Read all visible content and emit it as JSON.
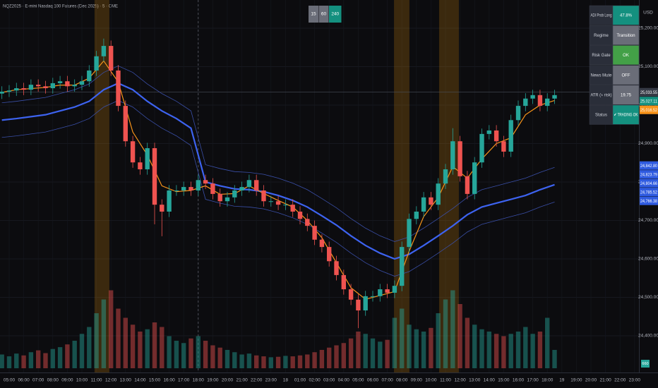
{
  "header": {
    "symbol_title": "NQZ2025 · E-mini Nasdaq 100 Futures (Dec 2025) · 5 · CME",
    "intervals": [
      {
        "label": "15",
        "color": "#6a6d78"
      },
      {
        "label": "60",
        "color": "#6a6d78"
      },
      {
        "label": "240",
        "color": "#14907f"
      }
    ]
  },
  "table": {
    "rows": [
      [
        "ADI Prob Long",
        "47.8%"
      ],
      [
        "Regime",
        "Transition"
      ],
      [
        "Risk Gate",
        "OK"
      ],
      [
        "News Mute",
        "OFF"
      ],
      [
        "ATR (≈ risk)",
        "19.75"
      ],
      [
        "Status",
        "✔ TRADING OK"
      ]
    ],
    "label_color": "#2a2e39",
    "value_colors": [
      "#14907f",
      "#6a6d78",
      "#43a047",
      "#6a6d78",
      "#6a6d78",
      "#14907f"
    ]
  },
  "chart_data": {
    "type": "candlestick",
    "x": [
      -0.5,
      0,
      0.5,
      1,
      1.5,
      2,
      2.5,
      3,
      3.5,
      4,
      4.5,
      5,
      5.5,
      6,
      6.5,
      7,
      7.5,
      8,
      8.5,
      9,
      9.5,
      10,
      10.5,
      11,
      11.5,
      12,
      12.5,
      13,
      13.5,
      14,
      14.5,
      15,
      15.5,
      16,
      16.5,
      17,
      17.5,
      18,
      18.5,
      19,
      19.5,
      20,
      20.5,
      21,
      21.5,
      22,
      22.5,
      23,
      23.5,
      24,
      24.5,
      25,
      25.5,
      26,
      26.5,
      27,
      27.5,
      28,
      28.5,
      29,
      29.5,
      30,
      30.5,
      31,
      31.5,
      32,
      32.5,
      33,
      33.5,
      34,
      34.5,
      35,
      35.5,
      36,
      36.5,
      37,
      37.5
    ],
    "open": [
      25030,
      25035,
      25038,
      25044,
      25040,
      25053,
      25049,
      25044,
      25057,
      25062,
      25049,
      25053,
      25062,
      25090,
      25127,
      25154,
      25090,
      24998,
      24906,
      24851,
      24833,
      24888,
      24741,
      24723,
      24778,
      24778,
      24787,
      24778,
      24805,
      24796,
      24769,
      24750,
      24760,
      24778,
      24787,
      24805,
      24778,
      24750,
      24750,
      24741,
      24741,
      24723,
      24704,
      24686,
      24650,
      24631,
      24594,
      24558,
      24521,
      24494,
      24466,
      24503,
      24503,
      24521,
      24512,
      24530,
      24631,
      24704,
      24723,
      24760,
      24741,
      24796,
      24833,
      24906,
      24815,
      24769,
      24851,
      24925,
      24934,
      24906,
      24879,
      24961,
      24998,
      25017,
      25026,
      24998,
      25017
    ],
    "high": [
      25049,
      25052,
      25058,
      25058,
      25067,
      25067,
      25063,
      25071,
      25076,
      25076,
      25067,
      25076,
      25104,
      25141,
      25173,
      25168,
      25104,
      25012,
      24920,
      24865,
      24902,
      24902,
      24755,
      24792,
      24792,
      24801,
      24801,
      24819,
      24819,
      24810,
      24783,
      24774,
      24792,
      24801,
      24819,
      24819,
      24792,
      24764,
      24764,
      24755,
      24755,
      24737,
      24718,
      24700,
      24664,
      24645,
      24608,
      24572,
      24535,
      24508,
      24517,
      24517,
      24535,
      24535,
      24544,
      24645,
      24718,
      24737,
      24774,
      24774,
      24810,
      24847,
      24940,
      24920,
      24829,
      24865,
      24939,
      24948,
      24948,
      24920,
      24975,
      25012,
      25031,
      25040,
      25040,
      25031,
      25040
    ],
    "low": [
      25016,
      25021,
      25024,
      25026,
      25026,
      25035,
      25030,
      25030,
      25043,
      25035,
      25035,
      25039,
      25048,
      25076,
      25113,
      25076,
      24984,
      24892,
      24837,
      24819,
      24819,
      24690,
      24659,
      24709,
      24764,
      24764,
      24764,
      24764,
      24782,
      24755,
      24736,
      24736,
      24746,
      24764,
      24773,
      24764,
      24736,
      24736,
      24727,
      24727,
      24709,
      24690,
      24672,
      24636,
      24617,
      24580,
      24544,
      24507,
      24480,
      24420,
      24452,
      24489,
      24489,
      24498,
      24498,
      24516,
      24617,
      24690,
      24709,
      24727,
      24727,
      24782,
      24819,
      24801,
      24755,
      24755,
      24837,
      24911,
      24892,
      24865,
      24865,
      24947,
      24984,
      25003,
      24984,
      24984,
      25003
    ],
    "close": [
      25035,
      25038,
      25044,
      25040,
      25053,
      25049,
      25044,
      25057,
      25062,
      25049,
      25053,
      25062,
      25090,
      25127,
      25154,
      25090,
      24998,
      24906,
      24851,
      24833,
      24888,
      24741,
      24723,
      24778,
      24778,
      24787,
      24778,
      24805,
      24796,
      24769,
      24750,
      24760,
      24778,
      24787,
      24805,
      24778,
      24750,
      24750,
      24741,
      24741,
      24723,
      24704,
      24686,
      24650,
      24631,
      24594,
      24558,
      24521,
      24494,
      24466,
      24503,
      24503,
      24521,
      24512,
      24530,
      24631,
      24704,
      24723,
      24760,
      24741,
      24796,
      24833,
      24906,
      24815,
      24769,
      24851,
      24925,
      24934,
      24906,
      24879,
      24961,
      24998,
      25017,
      25026,
      24998,
      25017,
      25026
    ],
    "volume": [
      3000,
      2600,
      3200,
      2800,
      3500,
      3900,
      3300,
      4200,
      4600,
      5200,
      6000,
      7500,
      9000,
      12000,
      15000,
      17000,
      13000,
      11000,
      9500,
      8000,
      8500,
      10000,
      9000,
      7000,
      6000,
      5500,
      6500,
      7000,
      6000,
      5000,
      4500,
      4000,
      3500,
      3000,
      3200,
      2800,
      2600,
      2400,
      2500,
      2700,
      2600,
      2800,
      3000,
      3500,
      4000,
      4500,
      5000,
      5500,
      6500,
      8000,
      7500,
      6500,
      5800,
      6200,
      11000,
      13000,
      9500,
      8500,
      8000,
      8800,
      12000,
      15000,
      17000,
      14000,
      11000,
      9500,
      8500,
      8000,
      7500,
      7000,
      7500,
      8000,
      9000,
      7500,
      8000,
      11000,
      4000
    ],
    "vlim": [
      0,
      20000
    ],
    "up_color": "#26a69a",
    "down_color": "#ef5350",
    "line_x": [
      -0.5,
      0.5,
      1.5,
      2.5,
      3.5,
      4.5,
      5.5,
      6.5,
      7.5,
      8.5,
      9.5,
      10.5,
      11.5,
      12.5,
      13.5,
      14.5,
      15.5,
      16.5,
      17.5,
      18.5,
      19.5,
      20.5,
      21.5,
      22.5,
      23.5,
      24.5,
      25.5,
      26.5,
      27.5,
      28.5,
      29.5,
      30.5,
      31.5,
      32.5,
      33.5,
      34.5,
      35.5,
      36.5,
      37.5
    ],
    "lines": [
      {
        "color": "#3a4fa8",
        "width": 0.8,
        "values": [
          25006,
          25010,
          25015,
          25020,
          25030,
          25040,
          25055,
          25085,
          25102,
          25085,
          25055,
          25030,
          25010,
          24985,
          24845,
          24835,
          24827,
          24825,
          24820,
          24810,
          24797,
          24780,
          24757,
          24733,
          24705,
          24680,
          24660,
          24645,
          24657,
          24680,
          24705,
          24731,
          24760,
          24780,
          24790,
          24800,
          24810,
          24825,
          24838
        ]
      },
      {
        "color": "#3a4fa8",
        "width": 0.8,
        "values": [
          24916,
          24920,
          24925,
          24930,
          24940,
          24950,
          24965,
          24995,
          25012,
          24995,
          24965,
          24940,
          24920,
          24895,
          24755,
          24745,
          24737,
          24735,
          24730,
          24720,
          24707,
          24690,
          24667,
          24643,
          24615,
          24590,
          24570,
          24555,
          24567,
          24590,
          24615,
          24641,
          24670,
          24690,
          24700,
          24710,
          24720,
          24735,
          24748
        ]
      },
      {
        "color": "#3d63f0",
        "width": 2.2,
        "values": [
          24961,
          24965,
          24970,
          24975,
          24985,
          24995,
          25010,
          25040,
          25057,
          25040,
          25010,
          24985,
          24965,
          24940,
          24800,
          24790,
          24782,
          24780,
          24775,
          24765,
          24752,
          24735,
          24712,
          24688,
          24660,
          24635,
          24615,
          24600,
          24612,
          24635,
          24660,
          24686,
          24715,
          24735,
          24745,
          24755,
          24765,
          24780,
          24793
        ]
      },
      {
        "color": "#f7931a",
        "width": 1.2,
        "values": [
          25033,
          25040,
          25043,
          25046,
          25052,
          25052,
          25070,
          25115,
          25060,
          24930,
          24870,
          24790,
          24775,
          24778,
          24790,
          24768,
          24770,
          24790,
          24770,
          24752,
          24735,
          24700,
          24655,
          24590,
          24525,
          24495,
          24505,
          24515,
          24620,
          24710,
          24760,
          24840,
          24810,
          24860,
          24900,
          24915,
          24975,
          25000,
          25012
        ]
      }
    ],
    "highlights": {
      "color": "#b8750f",
      "ranges": [
        [
          5.87,
          6.89
        ],
        [
          26.46,
          27.52
        ],
        [
          29.56,
          30.92
        ]
      ]
    },
    "session_break": 13,
    "xlim": [
      -0.63,
      43.3
    ],
    "xticks": [
      {
        "value": 0,
        "label": "05:00"
      },
      {
        "value": 1,
        "label": "06:00"
      },
      {
        "value": 2,
        "label": "07:00"
      },
      {
        "value": 3,
        "label": "08:00"
      },
      {
        "value": 4,
        "label": "09:00"
      },
      {
        "value": 5,
        "label": "10:00"
      },
      {
        "value": 6,
        "label": "11:00"
      },
      {
        "value": 7,
        "label": "12:00"
      },
      {
        "value": 8,
        "label": "13:00"
      },
      {
        "value": 9,
        "label": "14:00"
      },
      {
        "value": 10,
        "label": "15:00"
      },
      {
        "value": 11,
        "label": "16:00"
      },
      {
        "value": 12,
        "label": "17:00"
      },
      {
        "value": 13,
        "label": "18:00"
      },
      {
        "value": 14,
        "label": "19:00"
      },
      {
        "value": 15,
        "label": "20:00"
      },
      {
        "value": 16,
        "label": "21:00"
      },
      {
        "value": 17,
        "label": "22:00"
      },
      {
        "value": 18,
        "label": "23:00"
      },
      {
        "value": 19,
        "label": "18"
      },
      {
        "value": 20,
        "label": "01:00"
      },
      {
        "value": 21,
        "label": "02:00"
      },
      {
        "value": 22,
        "label": "03:00"
      },
      {
        "value": 23,
        "label": "04:00"
      },
      {
        "value": 24,
        "label": "05:00"
      },
      {
        "value": 25,
        "label": "06:00"
      },
      {
        "value": 26,
        "label": "07:00"
      },
      {
        "value": 27,
        "label": "08:00"
      },
      {
        "value": 28,
        "label": "09:00"
      },
      {
        "value": 29,
        "label": "10:00"
      },
      {
        "value": 30,
        "label": "11:00"
      },
      {
        "value": 31,
        "label": "12:00"
      },
      {
        "value": 32,
        "label": "13:00"
      },
      {
        "value": 33,
        "label": "14:00"
      },
      {
        "value": 34,
        "label": "15:00"
      },
      {
        "value": 35,
        "label": "16:00"
      },
      {
        "value": 36,
        "label": "17:00"
      },
      {
        "value": 37,
        "label": "18:00"
      },
      {
        "value": 38,
        "label": "19"
      },
      {
        "value": 39,
        "label": "19:00"
      },
      {
        "value": 40,
        "label": "20:00"
      },
      {
        "value": 41,
        "label": "21:00"
      },
      {
        "value": 42,
        "label": "22:00"
      },
      {
        "value": 43,
        "label": "23:00"
      }
    ],
    "ylim": [
      24315.6,
      25273.4
    ],
    "yticks": [
      {
        "value": 24400,
        "label": "24,400.00"
      },
      {
        "value": 24500,
        "label": "24,500.00"
      },
      {
        "value": 24600,
        "label": "24,600.00"
      },
      {
        "value": 24700,
        "label": "24,700.00"
      },
      {
        "value": 24800,
        "label": "24,800.00"
      },
      {
        "value": 24900,
        "label": "24,900.00"
      },
      {
        "value": 25000,
        "label": "25,000.00"
      },
      {
        "value": 25100,
        "label": "25,100.00"
      },
      {
        "value": 25200,
        "label": "25,200.00"
      }
    ],
    "grid": true,
    "currency": "USD",
    "symbol_tag": "NQZ2025",
    "price_labels": [
      {
        "value": 25033.55,
        "label": "25,033.55",
        "color": "#363a45"
      },
      {
        "value": 25027.11,
        "label": "25,027.11",
        "color": "#14907f"
      },
      {
        "value": 25016.52,
        "label": "25,016.52",
        "color": "#f7931a"
      },
      {
        "value": 24842.8,
        "label": "24,842.80",
        "color": "#2f5be0"
      },
      {
        "value": 24823.79,
        "label": "24,823.79",
        "color": "#2f5be0"
      },
      {
        "value": 24804.66,
        "label": "24,804.66",
        "color": "#2f5be0"
      },
      {
        "value": 24785.52,
        "label": "24,785.52",
        "color": "#2f5be0"
      },
      {
        "value": 24766.38,
        "label": "24,766.38",
        "color": "#2f5be0"
      }
    ],
    "last_volume_label": 660
  }
}
